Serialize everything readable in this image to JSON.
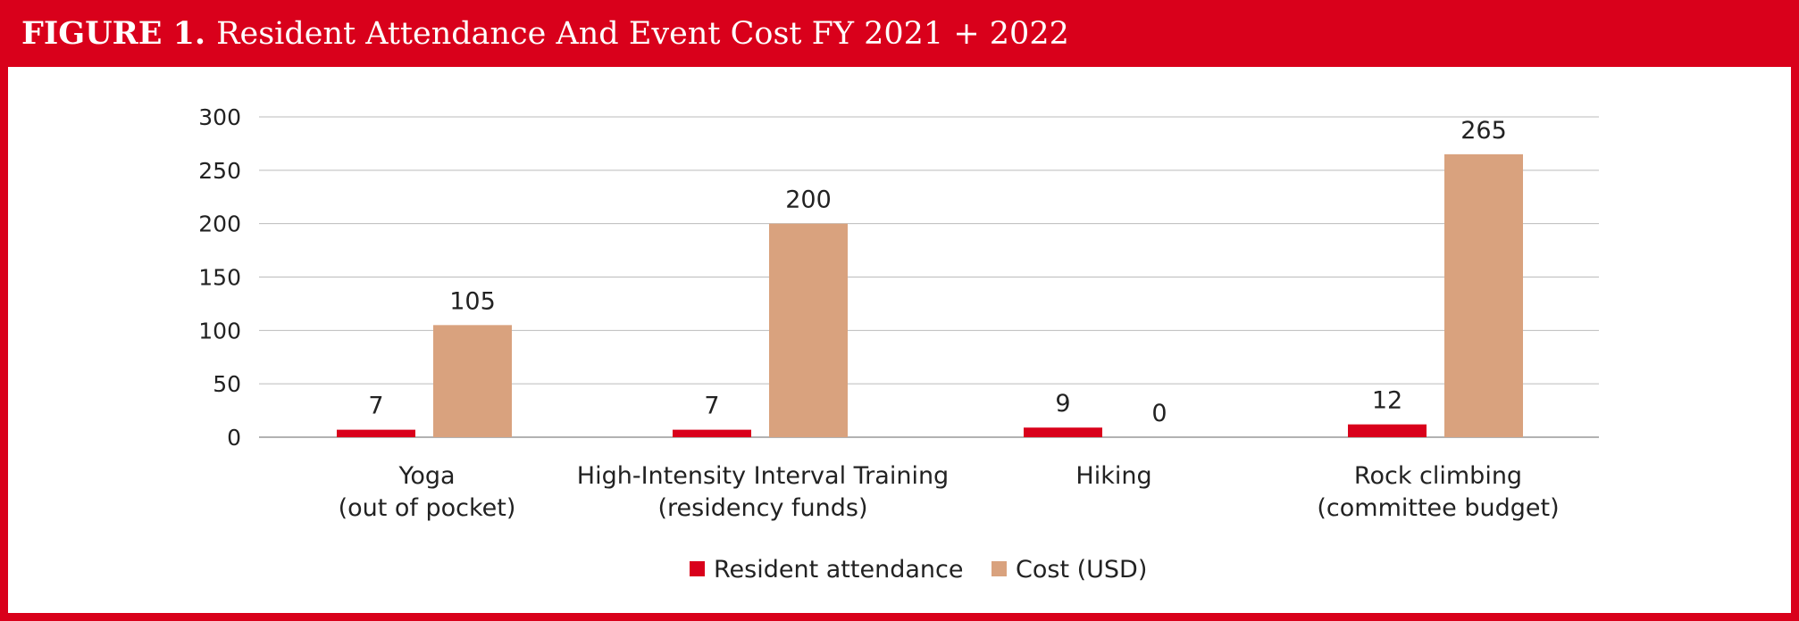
{
  "figure": {
    "label": "FIGURE 1.",
    "title": "Resident Attendance And Event Cost FY 2021 + 2022"
  },
  "colors": {
    "accent": "#d9001b",
    "attendance": "#d9001b",
    "cost": "#d9a27e",
    "grid": "#bbbbbb",
    "text": "#222222"
  },
  "chart_data": {
    "type": "bar",
    "title": "Resident Attendance And Event Cost FY 2021 + 2022",
    "categories": [
      [
        "Yoga",
        "(out of pocket)"
      ],
      [
        "High-Intensity Interval Training",
        "(residency funds)"
      ],
      [
        "Hiking",
        ""
      ],
      [
        "Rock climbing",
        "(committee budget)"
      ]
    ],
    "series": [
      {
        "name": "Resident attendance",
        "values": [
          7,
          7,
          9,
          12
        ],
        "labels": [
          "7",
          "7",
          "9",
          "12"
        ]
      },
      {
        "name": "Cost (USD)",
        "values": [
          105,
          200,
          0,
          265
        ],
        "labels": [
          "105",
          "200",
          "0",
          "265"
        ]
      }
    ],
    "ylim": [
      0,
      300
    ],
    "yticks": [
      0,
      50,
      100,
      150,
      200,
      250,
      300
    ],
    "ytick_labels": [
      "0",
      "50",
      "100",
      "150",
      "200",
      "250",
      "300"
    ],
    "xlabel": "",
    "ylabel": "",
    "grid": true,
    "legend": "bottom-center"
  }
}
